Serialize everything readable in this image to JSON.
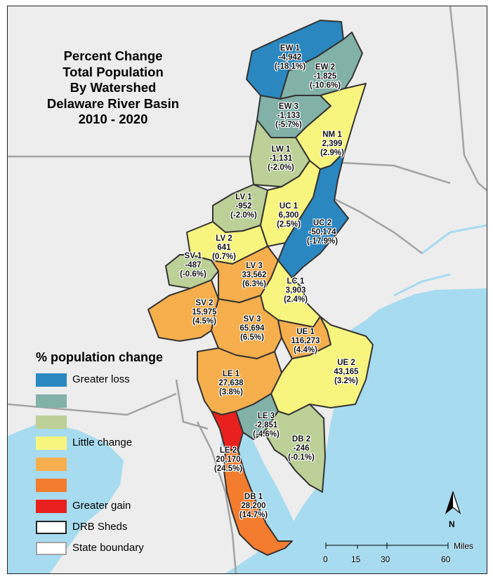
{
  "title": {
    "lines": [
      "Percent Change",
      "Total Population",
      "By Watershed",
      "Delaware River Basin",
      "2010 - 2020"
    ]
  },
  "legend": {
    "title": "% population change",
    "items": [
      {
        "label": "Greater loss",
        "color": "#2b87c0"
      },
      {
        "label": "",
        "color": "#82b1a8"
      },
      {
        "label": "",
        "color": "#bcd097"
      },
      {
        "label": "Little change",
        "color": "#f8f57e"
      },
      {
        "label": "",
        "color": "#f7ae4c"
      },
      {
        "label": "",
        "color": "#f47c2e"
      },
      {
        "label": "Greater gain",
        "color": "#e8211e"
      },
      {
        "label": "DRB Sheds",
        "color": "#ffffff"
      },
      {
        "label": "State boundary",
        "color": "#ffffff"
      }
    ]
  },
  "watersheds": [
    {
      "id": "EW 1",
      "change": "-4,942",
      "pct": "(-18.1%)",
      "color": "#2b87c0"
    },
    {
      "id": "EW 2",
      "change": "-1,825",
      "pct": "(-10.6%)",
      "color": "#82b1a8"
    },
    {
      "id": "EW 3",
      "change": "-1,133",
      "pct": "(-5.7%)",
      "color": "#82b1a8"
    },
    {
      "id": "NM 1",
      "change": "2,399",
      "pct": "(2.9%)",
      "color": "#f8f57e"
    },
    {
      "id": "LW 1",
      "change": "-1,131",
      "pct": "(-2.0%)",
      "color": "#bcd097"
    },
    {
      "id": "LV 1",
      "change": "-952",
      "pct": "(-2.0%)",
      "color": "#bcd097"
    },
    {
      "id": "UC 1",
      "change": "6,300",
      "pct": "(2.5%)",
      "color": "#f8f57e"
    },
    {
      "id": "UC 2",
      "change": "-50,174",
      "pct": "(-17.9%)",
      "color": "#2b87c0"
    },
    {
      "id": "LV 2",
      "change": "641",
      "pct": "(0.7%)",
      "color": "#f8f57e"
    },
    {
      "id": "SV 1",
      "change": "-487",
      "pct": "(-0.6%)",
      "color": "#bcd097"
    },
    {
      "id": "LV 3",
      "change": "33,562",
      "pct": "(6.3%)",
      "color": "#f7ae4c"
    },
    {
      "id": "LC 1",
      "change": "3,903",
      "pct": "(2.4%)",
      "color": "#f8f57e"
    },
    {
      "id": "SV 2",
      "change": "15,975",
      "pct": "(4.5%)",
      "color": "#f7ae4c"
    },
    {
      "id": "SV 3",
      "change": "65,694",
      "pct": "(6.5%)",
      "color": "#f7ae4c"
    },
    {
      "id": "UE 1",
      "change": "116,273",
      "pct": "(4.4%)",
      "color": "#f7ae4c"
    },
    {
      "id": "UE 2",
      "change": "43,165",
      "pct": "(3.2%)",
      "color": "#f8f57e"
    },
    {
      "id": "LE 1",
      "change": "27,638",
      "pct": "(3.8%)",
      "color": "#f7ae4c"
    },
    {
      "id": "LE 3",
      "change": "-2,851",
      "pct": "(-4.6%)",
      "color": "#82b1a8"
    },
    {
      "id": "DB 2",
      "change": "-246",
      "pct": "(-0.1%)",
      "color": "#bcd097"
    },
    {
      "id": "LE 2",
      "change": "20,170",
      "pct": "(24.5%)",
      "color": "#e8211e"
    },
    {
      "id": "DB 1",
      "change": "28,200",
      "pct": "(14.7%)",
      "color": "#f47c2e"
    }
  ],
  "scale_bar": {
    "ticks": [
      "0",
      "15",
      "30",
      "60"
    ],
    "unit": "Miles"
  },
  "north_arrow": {
    "label": "N",
    "icon": "north-arrow-icon"
  },
  "colors": {
    "water": "#a7dbf0",
    "land": "#ededed",
    "state_boundary": "#a3a3a3",
    "shed_outline": "#333333"
  }
}
